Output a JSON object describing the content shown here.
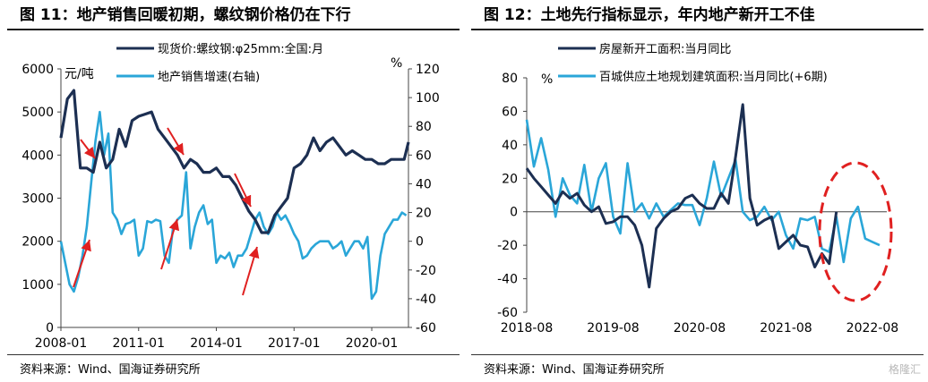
{
  "figures": [
    {
      "title": "图 11：地产销售回暖初期，螺纹钢价格仍在下行",
      "source": "资料来源：Wind、国海证券研究所"
    },
    {
      "title": "图 12：土地先行指标显示，年内地产新开工不佳",
      "source": "资料来源：Wind、国海证券研究所"
    }
  ],
  "watermark": "格隆汇",
  "chart_data": [
    {
      "type": "line",
      "x_tick_labels": [
        "2008-01",
        "2011-01",
        "2014-01",
        "2017-01",
        "2020-01"
      ],
      "x_range": [
        "2008-01",
        "2021-06"
      ],
      "y_left": {
        "unit": "元/吨",
        "ylim": [
          0,
          6000
        ],
        "ticks": [
          "0",
          "1000",
          "2000",
          "3000",
          "4000",
          "5000",
          "6000"
        ]
      },
      "y_right": {
        "unit": "%",
        "ylim": [
          -60,
          120
        ],
        "ticks": [
          "-60",
          "-40",
          "-20",
          "0",
          "20",
          "40",
          "60",
          "80",
          "100",
          "120"
        ]
      },
      "legend_position": "top",
      "annotation_arrows": "red arrows marking falling rebar price (down) while property sales growth rises (up)",
      "colors": {
        "rebar": "#1c2f52",
        "sales": "#2aa6d8",
        "arrows": "#e02020"
      },
      "series": [
        {
          "name": "现货价:螺纹钢:φ25mm:全国:月",
          "axis": "left",
          "x": [
            "2008-01",
            "2008-04",
            "2008-07",
            "2008-10",
            "2009-01",
            "2009-04",
            "2009-07",
            "2009-10",
            "2010-01",
            "2010-04",
            "2010-07",
            "2010-10",
            "2011-01",
            "2011-04",
            "2011-07",
            "2011-10",
            "2012-01",
            "2012-04",
            "2012-07",
            "2012-10",
            "2013-01",
            "2013-04",
            "2013-07",
            "2013-10",
            "2014-01",
            "2014-04",
            "2014-07",
            "2014-10",
            "2015-01",
            "2015-04",
            "2015-07",
            "2015-10",
            "2016-01",
            "2016-04",
            "2016-07",
            "2016-10",
            "2017-01",
            "2017-04",
            "2017-07",
            "2017-10",
            "2018-01",
            "2018-04",
            "2018-07",
            "2018-10",
            "2019-01",
            "2019-04",
            "2019-07",
            "2019-10",
            "2020-01",
            "2020-04",
            "2020-07",
            "2020-10",
            "2021-01",
            "2021-04",
            "2021-06"
          ],
          "values": [
            4400,
            5300,
            5500,
            3700,
            3700,
            3600,
            4300,
            3700,
            3900,
            4600,
            4200,
            4800,
            4900,
            4950,
            5000,
            4600,
            4400,
            4200,
            4000,
            3700,
            3900,
            3800,
            3600,
            3600,
            3700,
            3500,
            3500,
            3300,
            3000,
            2700,
            2500,
            2200,
            2200,
            2600,
            2800,
            3000,
            3700,
            3800,
            4000,
            4400,
            4100,
            4300,
            4400,
            4200,
            4000,
            4100,
            4000,
            3900,
            3900,
            3800,
            3800,
            3900,
            3900,
            3900,
            4300
          ]
        },
        {
          "name": "地产销售增速(右轴)",
          "axis": "right",
          "x": [
            "2008-01",
            "2008-03",
            "2008-05",
            "2008-07",
            "2008-09",
            "2008-11",
            "2009-01",
            "2009-03",
            "2009-05",
            "2009-07",
            "2009-09",
            "2009-11",
            "2010-01",
            "2010-03",
            "2010-05",
            "2010-07",
            "2010-09",
            "2010-11",
            "2011-01",
            "2011-03",
            "2011-05",
            "2011-07",
            "2011-09",
            "2011-11",
            "2012-01",
            "2012-03",
            "2012-05",
            "2012-07",
            "2012-09",
            "2012-11",
            "2013-01",
            "2013-03",
            "2013-05",
            "2013-07",
            "2013-09",
            "2013-11",
            "2014-01",
            "2014-03",
            "2014-05",
            "2014-07",
            "2014-09",
            "2014-11",
            "2015-01",
            "2015-03",
            "2015-05",
            "2015-07",
            "2015-09",
            "2015-11",
            "2016-01",
            "2016-03",
            "2016-05",
            "2016-07",
            "2016-09",
            "2016-11",
            "2017-01",
            "2017-03",
            "2017-05",
            "2017-07",
            "2017-09",
            "2017-11",
            "2018-01",
            "2018-03",
            "2018-05",
            "2018-07",
            "2018-09",
            "2018-11",
            "2019-01",
            "2019-03",
            "2019-05",
            "2019-07",
            "2019-09",
            "2019-11",
            "2020-01",
            "2020-03",
            "2020-05",
            "2020-07",
            "2020-09",
            "2020-11",
            "2021-01",
            "2021-03",
            "2021-05"
          ],
          "values": [
            0,
            -15,
            -30,
            -35,
            -25,
            -10,
            10,
            40,
            70,
            90,
            60,
            75,
            20,
            15,
            5,
            12,
            13,
            15,
            -10,
            -5,
            14,
            13,
            15,
            14,
            -10,
            -15,
            10,
            15,
            18,
            48,
            -5,
            10,
            20,
            25,
            12,
            15,
            -15,
            -10,
            -12,
            -8,
            -18,
            -10,
            -10,
            -5,
            5,
            15,
            20,
            10,
            5,
            10,
            20,
            15,
            18,
            12,
            5,
            0,
            -12,
            -10,
            -5,
            -2,
            0,
            0,
            0,
            -5,
            -3,
            0,
            -10,
            -5,
            0,
            0,
            -5,
            3,
            -40,
            -35,
            -10,
            5,
            10,
            15,
            15,
            20,
            18
          ]
        }
      ]
    },
    {
      "type": "line",
      "x_tick_labels": [
        "2018-08",
        "2019-08",
        "2020-08",
        "2021-08",
        "2022-08"
      ],
      "x_range": [
        "2018-08",
        "2022-10"
      ],
      "ylim": [
        -60,
        80
      ],
      "y_ticks": [
        "-60",
        "-40",
        "-20",
        "0",
        "20",
        "40",
        "60",
        "80"
      ],
      "y_unit": "%",
      "legend_position": "top",
      "annotation_ellipse": "red dashed ellipse around the leading land-supply series for 2022",
      "colors": {
        "new_starts": "#1c2f52",
        "land_supply": "#2aa6d8",
        "ellipse": "#e02020"
      },
      "series": [
        {
          "name": "房屋新开工面积:当月同比",
          "x": [
            "2018-08",
            "2018-09",
            "2018-10",
            "2018-11",
            "2018-12",
            "2019-01",
            "2019-02",
            "2019-03",
            "2019-04",
            "2019-05",
            "2019-06",
            "2019-07",
            "2019-08",
            "2019-09",
            "2019-10",
            "2019-11",
            "2019-12",
            "2020-01",
            "2020-02",
            "2020-03",
            "2020-04",
            "2020-05",
            "2020-06",
            "2020-07",
            "2020-08",
            "2020-09",
            "2020-10",
            "2020-11",
            "2020-12",
            "2021-01",
            "2021-02",
            "2021-03",
            "2021-04",
            "2021-05",
            "2021-06",
            "2021-07",
            "2021-08",
            "2021-09",
            "2021-10",
            "2021-11",
            "2021-12",
            "2022-01",
            "2022-02",
            "2022-03"
          ],
          "values": [
            26,
            20,
            15,
            10,
            5,
            12,
            8,
            11,
            4,
            0,
            3,
            -7,
            -6,
            -3,
            -3,
            -8,
            -20,
            -45,
            -10,
            -4,
            0,
            2,
            8,
            10,
            5,
            2,
            2,
            11,
            5,
            33,
            64,
            8,
            -8,
            -5,
            -3,
            -22,
            -18,
            -14,
            -20,
            -21,
            -33,
            -25,
            -31,
            0
          ]
        },
        {
          "name": "百城供应土地规划建筑面积:当月同比(+6期)",
          "x": [
            "2018-08",
            "2018-09",
            "2018-10",
            "2018-11",
            "2018-12",
            "2019-01",
            "2019-02",
            "2019-03",
            "2019-04",
            "2019-05",
            "2019-06",
            "2019-07",
            "2019-08",
            "2019-09",
            "2019-10",
            "2019-11",
            "2019-12",
            "2020-01",
            "2020-02",
            "2020-03",
            "2020-04",
            "2020-05",
            "2020-06",
            "2020-07",
            "2020-08",
            "2020-09",
            "2020-10",
            "2020-11",
            "2020-12",
            "2021-01",
            "2021-02",
            "2021-03",
            "2021-04",
            "2021-05",
            "2021-06",
            "2021-07",
            "2021-08",
            "2021-09",
            "2021-10",
            "2021-11",
            "2021-12",
            "2022-01",
            "2022-02",
            "2022-03",
            "2022-04",
            "2022-05",
            "2022-06",
            "2022-07",
            "2022-08",
            "2022-09"
          ],
          "values": [
            55,
            27,
            44,
            25,
            -3,
            20,
            10,
            5,
            28,
            0,
            20,
            29,
            -3,
            -13,
            29,
            0,
            5,
            -4,
            5,
            -3,
            1,
            5,
            4,
            4,
            -8,
            8,
            30,
            9,
            20,
            31,
            0,
            -5,
            -3,
            3,
            -5,
            0,
            -14,
            -22,
            -4,
            -5,
            -3,
            -22,
            -24,
            -3,
            -30,
            -4,
            3,
            -16,
            -18,
            -20
          ]
        }
      ]
    }
  ]
}
